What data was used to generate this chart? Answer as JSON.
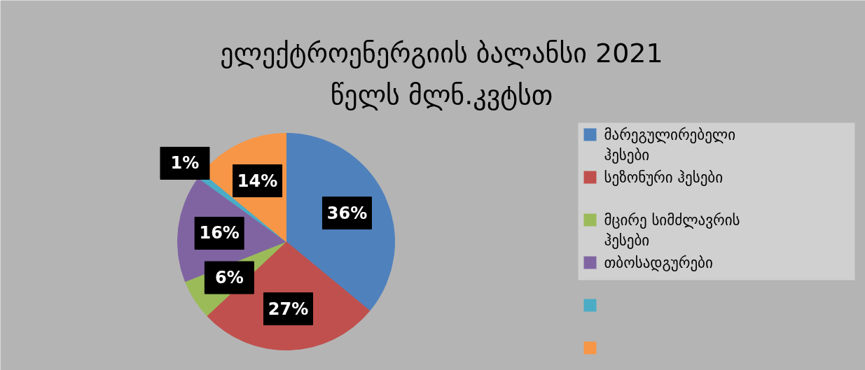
{
  "chart_data": {
    "type": "pie",
    "title": "ელექტროენერგიის ბალანსი 2021 წელს მლნ.კვტსთ",
    "categories": [
      "მარეგულირებელი ჰესები",
      "სეზონური ჰესები",
      "მცირე სიმძლავრის ჰესები",
      "თბოსადგურები",
      null,
      null
    ],
    "values": [
      36,
      27,
      6,
      16,
      1,
      14
    ],
    "colors": [
      "#4f81bd",
      "#c0504d",
      "#9bbb59",
      "#8064a2",
      "#4bacc6",
      "#f79646"
    ],
    "value_labels": [
      "36%",
      "27%",
      "6%",
      "16%",
      "1%",
      "14%"
    ],
    "legend": "right"
  }
}
